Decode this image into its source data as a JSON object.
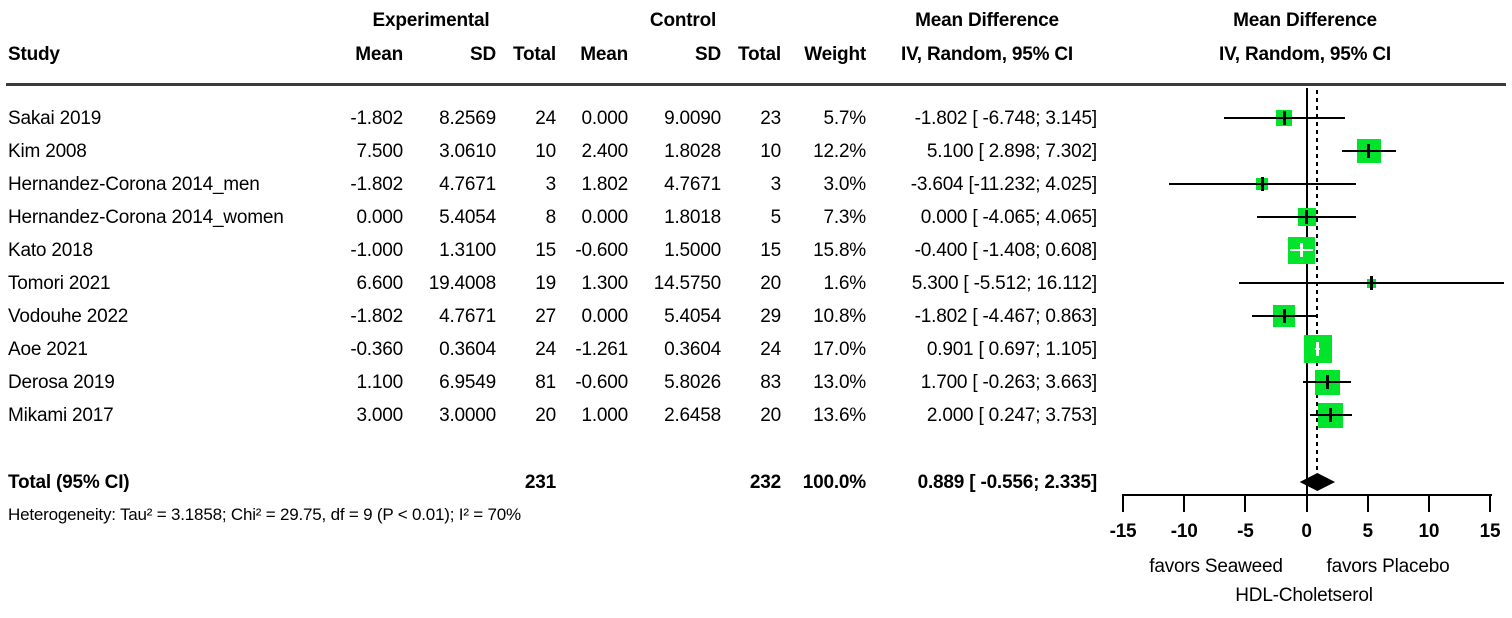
{
  "header": {
    "col_study": "Study",
    "group_experimental": "Experimental",
    "group_control": "Control",
    "group_md_text": "Mean Difference",
    "group_md_plot": "Mean Difference",
    "sub_exp_mean": "Mean",
    "sub_exp_sd": "SD",
    "sub_exp_total": "Total",
    "sub_ctrl_mean": "Mean",
    "sub_ctrl_sd": "SD",
    "sub_ctrl_total": "Total",
    "sub_weight": "Weight",
    "sub_ci_text": "IV, Random, 95% CI",
    "sub_ci_plot": "IV, Random, 95% CI"
  },
  "colors": {
    "square": "#00E52C",
    "diamond": "#000000",
    "line": "#000000"
  },
  "chart_data": {
    "type": "forest",
    "effect_measure": "Mean Difference",
    "model": "IV, Random, 95% CI",
    "axis": {
      "ticks": [
        -15,
        -10,
        -5,
        0,
        5,
        10,
        15
      ],
      "xlim": [
        -15,
        15
      ],
      "zero_line": 0,
      "pooled_line": 0.889
    },
    "axis_labels": {
      "left": "favors Seaweed",
      "right": "favors Placebo",
      "outcome": "HDL-Choletserol"
    },
    "studies": [
      {
        "name": "Sakai 2019",
        "exp_mean": "-1.802",
        "exp_sd": "8.2569",
        "exp_total": "24",
        "ctrl_mean": "0.000",
        "ctrl_sd": "9.0090",
        "ctrl_total": "23",
        "weight": "5.7%",
        "md": -1.802,
        "ci_low": -6.748,
        "ci_high": 3.145,
        "md_text": "-1.802 [ -6.748; 3.145]"
      },
      {
        "name": "Kim 2008",
        "exp_mean": "7.500",
        "exp_sd": "3.0610",
        "exp_total": "10",
        "ctrl_mean": "2.400",
        "ctrl_sd": "1.8028",
        "ctrl_total": "10",
        "weight": "12.2%",
        "md": 5.1,
        "ci_low": 2.898,
        "ci_high": 7.302,
        "md_text": "5.100 [ 2.898; 7.302]"
      },
      {
        "name": "Hernandez-Corona 2014_men",
        "exp_mean": "-1.802",
        "exp_sd": "4.7671",
        "exp_total": "3",
        "ctrl_mean": "1.802",
        "ctrl_sd": "4.7671",
        "ctrl_total": "3",
        "weight": "3.0%",
        "md": -3.604,
        "ci_low": -11.232,
        "ci_high": 4.025,
        "md_text": "-3.604 [-11.232; 4.025]"
      },
      {
        "name": "Hernandez-Corona 2014_women",
        "exp_mean": "0.000",
        "exp_sd": "5.4054",
        "exp_total": "8",
        "ctrl_mean": "0.000",
        "ctrl_sd": "1.8018",
        "ctrl_total": "5",
        "weight": "7.3%",
        "md": 0.0,
        "ci_low": -4.065,
        "ci_high": 4.065,
        "md_text": "0.000 [ -4.065; 4.065]"
      },
      {
        "name": "Kato 2018",
        "exp_mean": "-1.000",
        "exp_sd": "1.3100",
        "exp_total": "15",
        "ctrl_mean": "-0.600",
        "ctrl_sd": "1.5000",
        "ctrl_total": "15",
        "weight": "15.8%",
        "md": -0.4,
        "ci_low": -1.408,
        "ci_high": 0.608,
        "md_text": "-0.400 [ -1.408; 0.608]"
      },
      {
        "name": "Tomori 2021",
        "exp_mean": "6.600",
        "exp_sd": "19.4008",
        "exp_total": "19",
        "ctrl_mean": "1.300",
        "ctrl_sd": "14.5750",
        "ctrl_total": "20",
        "weight": "1.6%",
        "md": 5.3,
        "ci_low": -5.512,
        "ci_high": 16.112,
        "md_text": "5.300 [ -5.512; 16.112]"
      },
      {
        "name": "Vodouhe 2022",
        "exp_mean": "-1.802",
        "exp_sd": "4.7671",
        "exp_total": "27",
        "ctrl_mean": "0.000",
        "ctrl_sd": "5.4054",
        "ctrl_total": "29",
        "weight": "10.8%",
        "md": -1.802,
        "ci_low": -4.467,
        "ci_high": 0.863,
        "md_text": "-1.802 [ -4.467; 0.863]"
      },
      {
        "name": "Aoe 2021",
        "exp_mean": "-0.360",
        "exp_sd": "0.3604",
        "exp_total": "24",
        "ctrl_mean": "-1.261",
        "ctrl_sd": "0.3604",
        "ctrl_total": "24",
        "weight": "17.0%",
        "md": 0.901,
        "ci_low": 0.697,
        "ci_high": 1.105,
        "md_text": "0.901 [ 0.697; 1.105]"
      },
      {
        "name": "Derosa 2019",
        "exp_mean": "1.100",
        "exp_sd": "6.9549",
        "exp_total": "81",
        "ctrl_mean": "-0.600",
        "ctrl_sd": "5.8026",
        "ctrl_total": "83",
        "weight": "13.0%",
        "md": 1.7,
        "ci_low": -0.263,
        "ci_high": 3.663,
        "md_text": "1.700 [ -0.263; 3.663]"
      },
      {
        "name": "Mikami 2017",
        "exp_mean": "3.000",
        "exp_sd": "3.0000",
        "exp_total": "20",
        "ctrl_mean": "1.000",
        "ctrl_sd": "2.6458",
        "ctrl_total": "20",
        "weight": "13.6%",
        "md": 2.0,
        "ci_low": 0.247,
        "ci_high": 3.753,
        "md_text": "2.000 [ 0.247; 3.753]"
      }
    ],
    "total": {
      "label": "Total (95% CI)",
      "exp_total": "231",
      "ctrl_total": "232",
      "weight": "100.0%",
      "md": 0.889,
      "ci_low": -0.556,
      "ci_high": 2.335,
      "md_text": "0.889 [ -0.556; 2.335]"
    },
    "heterogeneity": "Heterogeneity: Tau² = 3.1858; Chi² = 29.75, df = 9 (P < 0.01); I² = 70%"
  }
}
